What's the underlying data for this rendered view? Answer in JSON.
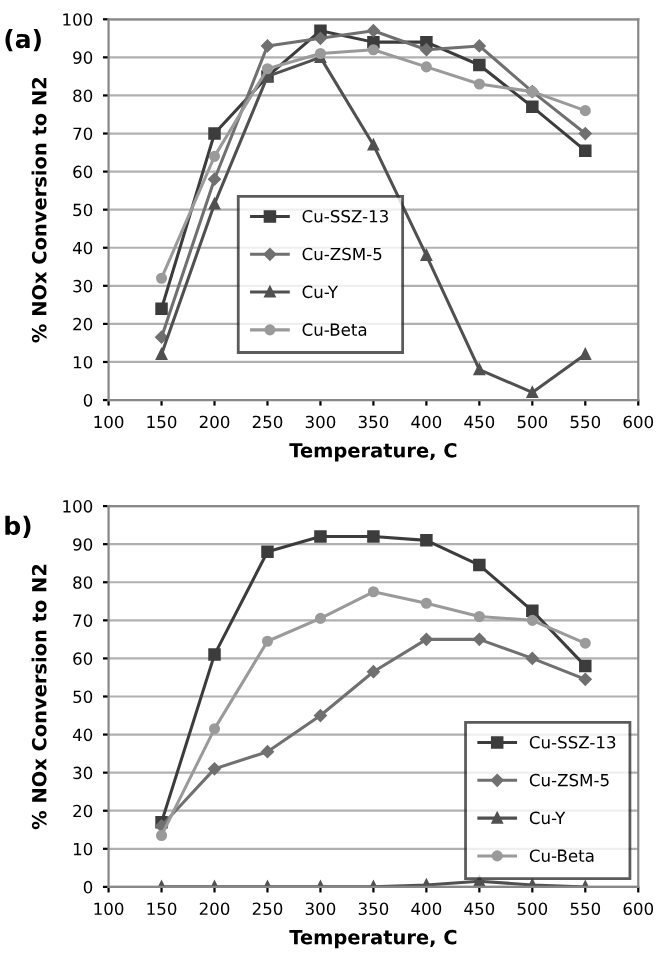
{
  "chart_data": [
    {
      "type": "line",
      "title": "(a)",
      "xlabel": "Temperature, C",
      "ylabel": "% NOx Conversion to N2",
      "x": [
        150,
        200,
        250,
        300,
        350,
        400,
        450,
        500,
        550
      ],
      "series": [
        {
          "name": "Cu-SSZ-13",
          "color": "#3c3c3c",
          "marker": "square",
          "values": [
            24,
            70,
            85,
            97,
            94,
            94,
            88,
            77,
            65.5
          ]
        },
        {
          "name": "Cu-ZSM-5",
          "color": "#707070",
          "marker": "diamond",
          "values": [
            16.5,
            58,
            93,
            95,
            97,
            92,
            93,
            81,
            70
          ]
        },
        {
          "name": "Cu-Y",
          "color": "#505050",
          "marker": "triangle",
          "values": [
            12,
            51.5,
            85,
            90,
            67,
            38,
            8,
            2,
            12
          ]
        },
        {
          "name": "Cu-Beta",
          "color": "#9a9a9a",
          "marker": "circle",
          "values": [
            32,
            64,
            87,
            91,
            92,
            87.5,
            83,
            81,
            76
          ]
        }
      ],
      "xlim": [
        100,
        600
      ],
      "xticks": [
        100,
        150,
        200,
        250,
        300,
        350,
        400,
        450,
        500,
        550,
        600
      ],
      "ylim": [
        0,
        100
      ],
      "yticks": [
        0,
        10,
        20,
        30,
        40,
        50,
        60,
        70,
        80,
        90,
        100
      ],
      "grid": "y",
      "legend": "bottom"
    },
    {
      "type": "line",
      "title": "b)",
      "xlabel": "Temperature, C",
      "ylabel": "% NOx Conversion to N2",
      "x": [
        150,
        200,
        250,
        300,
        350,
        400,
        450,
        500,
        550
      ],
      "series": [
        {
          "name": "Cu-SSZ-13",
          "color": "#3c3c3c",
          "marker": "square",
          "values": [
            17,
            61,
            88,
            92,
            92,
            91,
            84.5,
            72.5,
            58
          ]
        },
        {
          "name": "Cu-ZSM-5",
          "color": "#707070",
          "marker": "diamond",
          "values": [
            16,
            31,
            35.5,
            45,
            56.5,
            65,
            65,
            60,
            54.5
          ]
        },
        {
          "name": "Cu-Y",
          "color": "#505050",
          "marker": "triangle",
          "values": [
            0,
            0,
            0,
            0,
            0,
            0.5,
            1.5,
            0.5,
            0
          ]
        },
        {
          "name": "Cu-Beta",
          "color": "#9a9a9a",
          "marker": "circle",
          "values": [
            13.5,
            41.5,
            64.5,
            70.5,
            77.5,
            74.5,
            71,
            70,
            64
          ]
        }
      ],
      "xlim": [
        100,
        600
      ],
      "xticks": [
        100,
        150,
        200,
        250,
        300,
        350,
        400,
        450,
        500,
        550,
        600
      ],
      "ylim": [
        0,
        100
      ],
      "yticks": [
        0,
        10,
        20,
        30,
        40,
        50,
        60,
        70,
        80,
        90,
        100
      ],
      "grid": "y",
      "legend": "bottom right"
    }
  ]
}
